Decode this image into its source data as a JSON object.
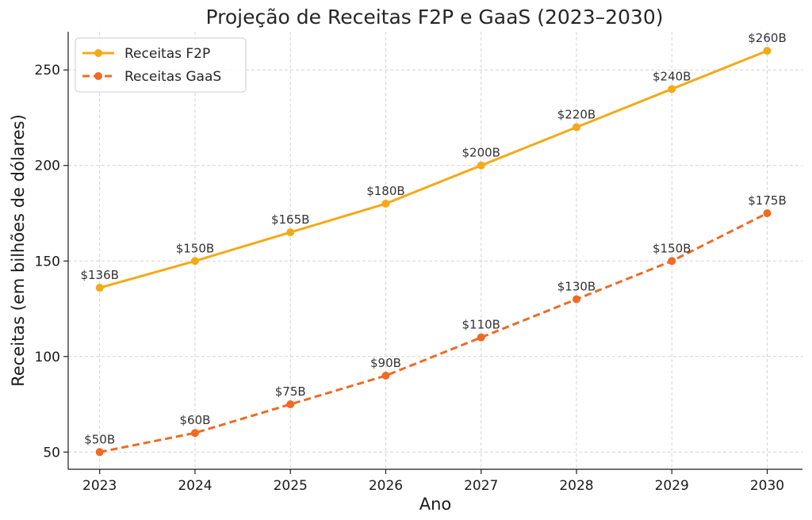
{
  "chart_data": {
    "type": "line",
    "title": "Projeção de Receitas F2P e GaaS (2023–2030)",
    "xlabel": "Ano",
    "ylabel": "Receitas (em bilhões de dólares)",
    "x": [
      2023,
      2024,
      2025,
      2026,
      2027,
      2028,
      2029,
      2030
    ],
    "x_tick_labels": [
      "2023",
      "2024",
      "2025",
      "2026",
      "2027",
      "2028",
      "2029",
      "2030"
    ],
    "y_ticks": [
      50,
      100,
      150,
      200,
      250
    ],
    "y_tick_labels": [
      "50",
      "100",
      "150",
      "200",
      "250"
    ],
    "ylim": [
      41,
      270
    ],
    "xlim": [
      2022.67,
      2030.37
    ],
    "grid": true,
    "legend_position": "top-left",
    "series": [
      {
        "name": "Receitas F2P",
        "color": "#f5a917",
        "line_style": "solid",
        "values": [
          136,
          150,
          165,
          180,
          200,
          220,
          240,
          260
        ],
        "data_labels": [
          "$136B",
          "$150B",
          "$165B",
          "$180B",
          "$200B",
          "$220B",
          "$240B",
          "$260B"
        ]
      },
      {
        "name": "Receitas GaaS",
        "color": "#ef6a25",
        "line_style": "dashed",
        "values": [
          50,
          60,
          75,
          90,
          110,
          130,
          150,
          175
        ],
        "data_labels": [
          "$50B",
          "$60B",
          "$75B",
          "$90B",
          "$110B",
          "$130B",
          "$150B",
          "$175B"
        ]
      }
    ]
  }
}
